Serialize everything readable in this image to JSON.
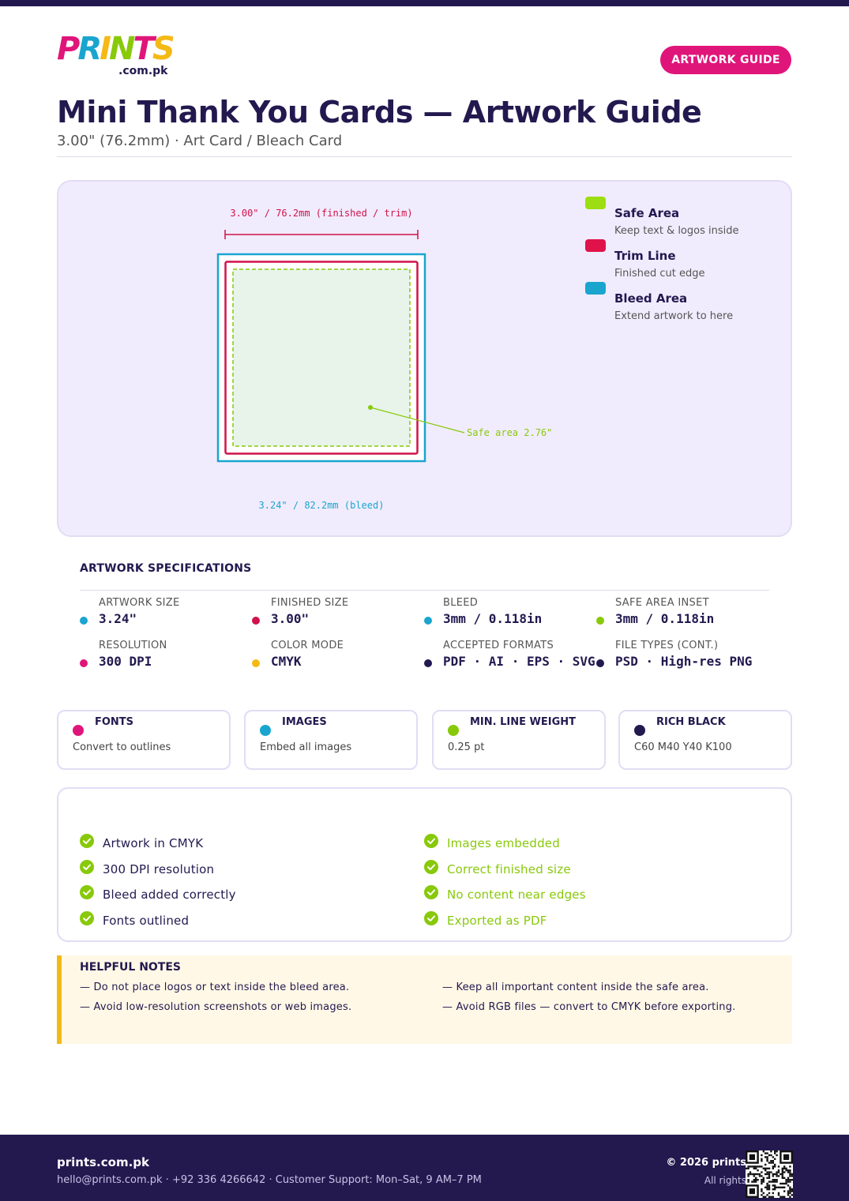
{
  "brand": {
    "logo_letters": [
      "P",
      "R",
      "I",
      "N",
      "T",
      "S"
    ],
    "logo_colors": [
      "#e0157a",
      "#1aa5cf",
      "#f5b915",
      "#88c90a",
      "#e0157a",
      "#f5b915"
    ],
    "logo_suffix": ".com.pk"
  },
  "header": {
    "pill_label": "ARTWORK GUIDE",
    "title": "Mini Thank You Cards — Artwork Guide",
    "subtitle": "3.00\" (76.2mm) · Art Card / Bleach Card"
  },
  "diagram": {
    "trim_dimension": "3.00\" / 76.2mm (finished / trim)",
    "bleed_dimension": "3.24\" / 82.2mm (bleed)",
    "safe_callout": "Safe area 2.76\"",
    "colors": {
      "safe": "#88c90a",
      "trim": "#d0124a",
      "bleed": "#1aa5cf",
      "safe_fill": "#e8f4ea"
    }
  },
  "legend": [
    {
      "name": "Safe Area",
      "desc": "Keep text & logos inside",
      "color": "#9cde12"
    },
    {
      "name": "Trim Line",
      "desc": "Finished cut edge",
      "color": "#e0124a"
    },
    {
      "name": "Bleed Area",
      "desc": "Extend artwork to here",
      "color": "#1aa5cf"
    }
  ],
  "specs": {
    "heading": "ARTWORK SPECIFICATIONS",
    "items": [
      {
        "label": "ARTWORK SIZE",
        "value": "3.24\"",
        "color": "#1aa5cf"
      },
      {
        "label": "FINISHED SIZE",
        "value": "3.00\"",
        "color": "#d0124a"
      },
      {
        "label": "BLEED",
        "value": "3mm / 0.118in",
        "color": "#1aa5cf"
      },
      {
        "label": "SAFE AREA INSET",
        "value": "3mm / 0.118in",
        "color": "#88c90a"
      },
      {
        "label": "RESOLUTION",
        "value": "300 DPI",
        "color": "#e0157a"
      },
      {
        "label": "COLOR MODE",
        "value": "CMYK",
        "color": "#f5b915"
      },
      {
        "label": "ACCEPTED FORMATS",
        "value": "PDF · AI · EPS · SVG",
        "color": "#23194f"
      },
      {
        "label": "FILE TYPES (CONT.)",
        "value": "PSD · High-res PNG",
        "color": "#23194f"
      }
    ]
  },
  "cards": [
    {
      "title": "FONTS",
      "desc": "Convert to outlines",
      "color": "#e0157a"
    },
    {
      "title": "IMAGES",
      "desc": "Embed all images",
      "color": "#1aa5cf"
    },
    {
      "title": "MIN. LINE WEIGHT",
      "desc": "0.25 pt",
      "color": "#88c90a"
    },
    {
      "title": "RICH BLACK",
      "desc": "C60 M40 Y40 K100",
      "color": "#23194f"
    }
  ],
  "checklist": {
    "left": [
      "Artwork in CMYK",
      "300 DPI resolution",
      "Bleed added correctly",
      "Fonts outlined"
    ],
    "right": [
      "Images embedded",
      "Correct finished size",
      "No content near edges",
      "Exported as PDF"
    ],
    "tick_color": "#88c90a"
  },
  "notes": {
    "heading": "HELPFUL NOTES",
    "items": [
      "— Do not place logos or text inside the bleed area.",
      "— Keep all important content inside the safe area.",
      "— Avoid low-resolution screenshots or web images.",
      "— Avoid RGB files — convert to CMYK before exporting."
    ]
  },
  "footer": {
    "site": "prints.com.pk",
    "contact": "hello@prints.com.pk · +92 336 4266642 · Customer Support: Mon–Sat, 9 AM–7 PM",
    "copyright": "© 2026 prints",
    "rights": "All rights"
  }
}
